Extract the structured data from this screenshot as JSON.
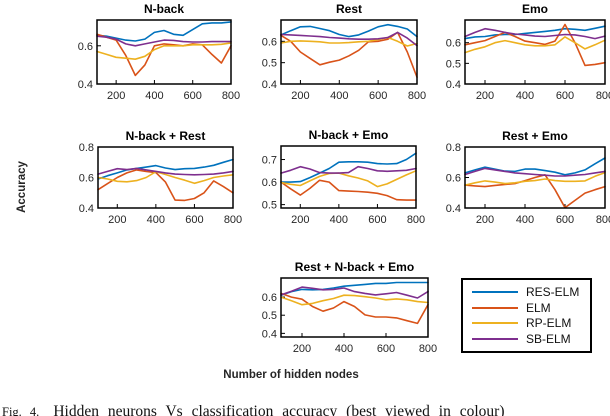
{
  "figure": {
    "y_axis_label": "Accuracy",
    "x_axis_label": "Number of hidden nodes",
    "caption_label": "Fig. 4.",
    "caption_text": "Hidden neurons Vs classification accuracy (best viewed in colour)"
  },
  "legend": {
    "entries": [
      {
        "label": "RES-ELM",
        "color": "#0072BD"
      },
      {
        "label": "ELM",
        "color": "#D95319"
      },
      {
        "label": "RP-ELM",
        "color": "#EDB120"
      },
      {
        "label": "SB-ELM",
        "color": "#7E2F8E"
      }
    ]
  },
  "chart_data": {
    "type": "line",
    "xlabel": "Number of hidden nodes",
    "ylabel": "Accuracy",
    "x": [
      100,
      150,
      200,
      250,
      300,
      350,
      400,
      450,
      500,
      550,
      600,
      650,
      700,
      750,
      800
    ],
    "xlim": [
      100,
      800
    ],
    "xticks": [
      200,
      400,
      600,
      800
    ],
    "grid": false,
    "legend_position": "bottom-right-outside",
    "series_order": [
      "RES-ELM",
      "ELM",
      "RP-ELM",
      "SB-ELM"
    ],
    "series_colors": {
      "RES-ELM": "#0072BD",
      "ELM": "#D95319",
      "RP-ELM": "#EDB120",
      "SB-ELM": "#7E2F8E"
    },
    "subplots": [
      {
        "title": "N-back",
        "ylim": [
          0.4,
          0.735
        ],
        "yticks": [
          0.4,
          0.6
        ],
        "series": {
          "RES-ELM": [
            0.655,
            0.65,
            0.64,
            0.63,
            0.625,
            0.635,
            0.67,
            0.68,
            0.66,
            0.655,
            0.685,
            0.715,
            0.72,
            0.72,
            0.725
          ],
          "ELM": [
            0.66,
            0.645,
            0.63,
            0.55,
            0.445,
            0.5,
            0.6,
            0.61,
            0.605,
            0.6,
            0.61,
            0.605,
            0.555,
            0.51,
            0.6
          ],
          "RP-ELM": [
            0.57,
            0.555,
            0.54,
            0.535,
            0.53,
            0.545,
            0.58,
            0.6,
            0.6,
            0.6,
            0.605,
            0.605,
            0.605,
            0.608,
            0.615
          ],
          "SB-ELM": [
            0.65,
            0.645,
            0.635,
            0.61,
            0.6,
            0.61,
            0.62,
            0.63,
            0.628,
            0.622,
            0.62,
            0.62,
            0.622,
            0.622,
            0.622
          ]
        }
      },
      {
        "title": "Rest",
        "ylim": [
          0.4,
          0.7
        ],
        "yticks": [
          0.4,
          0.5,
          0.6
        ],
        "series": {
          "RES-ELM": [
            0.63,
            0.65,
            0.668,
            0.67,
            0.66,
            0.65,
            0.632,
            0.622,
            0.63,
            0.648,
            0.668,
            0.678,
            0.67,
            0.658,
            0.622
          ],
          "ELM": [
            0.628,
            0.6,
            0.55,
            0.52,
            0.49,
            0.502,
            0.512,
            0.532,
            0.558,
            0.598,
            0.6,
            0.61,
            0.642,
            0.55,
            0.432
          ],
          "RP-ELM": [
            0.592,
            0.6,
            0.602,
            0.6,
            0.598,
            0.592,
            0.592,
            0.594,
            0.598,
            0.6,
            0.608,
            0.618,
            0.6,
            0.578,
            0.59
          ],
          "SB-ELM": [
            0.632,
            0.63,
            0.628,
            0.625,
            0.622,
            0.618,
            0.615,
            0.612,
            0.61,
            0.61,
            0.612,
            0.618,
            0.642,
            0.615,
            0.58
          ]
        }
      },
      {
        "title": "Emo",
        "ylim": [
          0.4,
          0.71
        ],
        "yticks": [
          0.4,
          0.5,
          0.6
        ],
        "series": {
          "RES-ELM": [
            0.62,
            0.628,
            0.63,
            0.638,
            0.64,
            0.64,
            0.645,
            0.65,
            0.655,
            0.66,
            0.668,
            0.665,
            0.66,
            0.67,
            0.68
          ],
          "ELM": [
            0.59,
            0.6,
            0.61,
            0.63,
            0.65,
            0.63,
            0.608,
            0.6,
            0.592,
            0.608,
            0.688,
            0.6,
            0.49,
            0.495,
            0.503
          ],
          "RP-ELM": [
            0.552,
            0.568,
            0.58,
            0.6,
            0.61,
            0.6,
            0.59,
            0.585,
            0.585,
            0.59,
            0.628,
            0.6,
            0.57,
            0.59,
            0.612
          ],
          "SB-ELM": [
            0.63,
            0.65,
            0.668,
            0.66,
            0.65,
            0.642,
            0.638,
            0.632,
            0.63,
            0.635,
            0.64,
            0.638,
            0.63,
            0.62,
            0.632
          ]
        }
      },
      {
        "title": "N-back + Rest",
        "ylim": [
          0.4,
          0.8
        ],
        "yticks": [
          0.4,
          0.6,
          0.8
        ],
        "series": {
          "RES-ELM": [
            0.59,
            0.612,
            0.63,
            0.65,
            0.66,
            0.668,
            0.678,
            0.662,
            0.652,
            0.658,
            0.66,
            0.668,
            0.68,
            0.7,
            0.718
          ],
          "ELM": [
            0.52,
            0.56,
            0.6,
            0.63,
            0.65,
            0.64,
            0.632,
            0.57,
            0.452,
            0.45,
            0.462,
            0.5,
            0.578,
            0.54,
            0.5
          ],
          "RP-ELM": [
            0.6,
            0.59,
            0.575,
            0.572,
            0.58,
            0.6,
            0.638,
            0.62,
            0.6,
            0.582,
            0.562,
            0.58,
            0.6,
            0.61,
            0.618
          ],
          "SB-ELM": [
            0.622,
            0.64,
            0.658,
            0.652,
            0.66,
            0.65,
            0.64,
            0.63,
            0.622,
            0.62,
            0.618,
            0.62,
            0.622,
            0.63,
            0.64
          ]
        }
      },
      {
        "title": "N-back + Emo",
        "ylim": [
          0.485,
          0.76
        ],
        "yticks": [
          0.5,
          0.6,
          0.7
        ],
        "series": {
          "RES-ELM": [
            0.6,
            0.6,
            0.602,
            0.62,
            0.64,
            0.66,
            0.688,
            0.69,
            0.69,
            0.688,
            0.682,
            0.68,
            0.682,
            0.7,
            0.728
          ],
          "ELM": [
            0.6,
            0.57,
            0.542,
            0.572,
            0.608,
            0.6,
            0.562,
            0.56,
            0.558,
            0.555,
            0.55,
            0.54,
            0.522,
            0.52,
            0.52
          ],
          "RP-ELM": [
            0.598,
            0.59,
            0.585,
            0.605,
            0.625,
            0.638,
            0.64,
            0.628,
            0.618,
            0.605,
            0.58,
            0.592,
            0.612,
            0.632,
            0.65
          ],
          "SB-ELM": [
            0.64,
            0.652,
            0.668,
            0.658,
            0.642,
            0.64,
            0.64,
            0.642,
            0.668,
            0.66,
            0.65,
            0.648,
            0.65,
            0.652,
            0.66
          ]
        }
      },
      {
        "title": "Rest + Emo",
        "ylim": [
          0.4,
          0.8
        ],
        "yticks": [
          0.4,
          0.6,
          0.8
        ],
        "series": {
          "RES-ELM": [
            0.63,
            0.65,
            0.668,
            0.655,
            0.642,
            0.64,
            0.655,
            0.655,
            0.645,
            0.635,
            0.618,
            0.63,
            0.65,
            0.69,
            0.728
          ],
          "ELM": [
            0.55,
            0.545,
            0.54,
            0.548,
            0.555,
            0.56,
            0.58,
            0.6,
            0.618,
            0.52,
            0.402,
            0.45,
            0.498,
            0.52,
            0.54
          ],
          "RP-ELM": [
            0.55,
            0.565,
            0.578,
            0.57,
            0.56,
            0.565,
            0.575,
            0.58,
            0.59,
            0.58,
            0.575,
            0.575,
            0.578,
            0.608,
            0.632
          ],
          "SB-ELM": [
            0.62,
            0.64,
            0.66,
            0.65,
            0.64,
            0.63,
            0.625,
            0.62,
            0.615,
            0.61,
            0.61,
            0.615,
            0.62,
            0.63,
            0.64
          ]
        }
      },
      {
        "title": "Rest + N-back + Emo",
        "ylim": [
          0.38,
          0.705
        ],
        "yticks": [
          0.4,
          0.5,
          0.6
        ],
        "series": {
          "RES-ELM": [
            0.61,
            0.63,
            0.642,
            0.64,
            0.642,
            0.65,
            0.66,
            0.665,
            0.67,
            0.675,
            0.675,
            0.68,
            0.68,
            0.68,
            0.68
          ],
          "ELM": [
            0.62,
            0.6,
            0.588,
            0.548,
            0.522,
            0.54,
            0.575,
            0.548,
            0.502,
            0.49,
            0.49,
            0.485,
            0.47,
            0.455,
            0.558
          ],
          "RP-ELM": [
            0.6,
            0.58,
            0.558,
            0.565,
            0.58,
            0.592,
            0.61,
            0.608,
            0.602,
            0.595,
            0.585,
            0.59,
            0.585,
            0.575,
            0.57
          ],
          "SB-ELM": [
            0.612,
            0.632,
            0.655,
            0.648,
            0.64,
            0.642,
            0.65,
            0.63,
            0.62,
            0.612,
            0.618,
            0.625,
            0.61,
            0.595,
            0.63
          ]
        }
      }
    ]
  }
}
